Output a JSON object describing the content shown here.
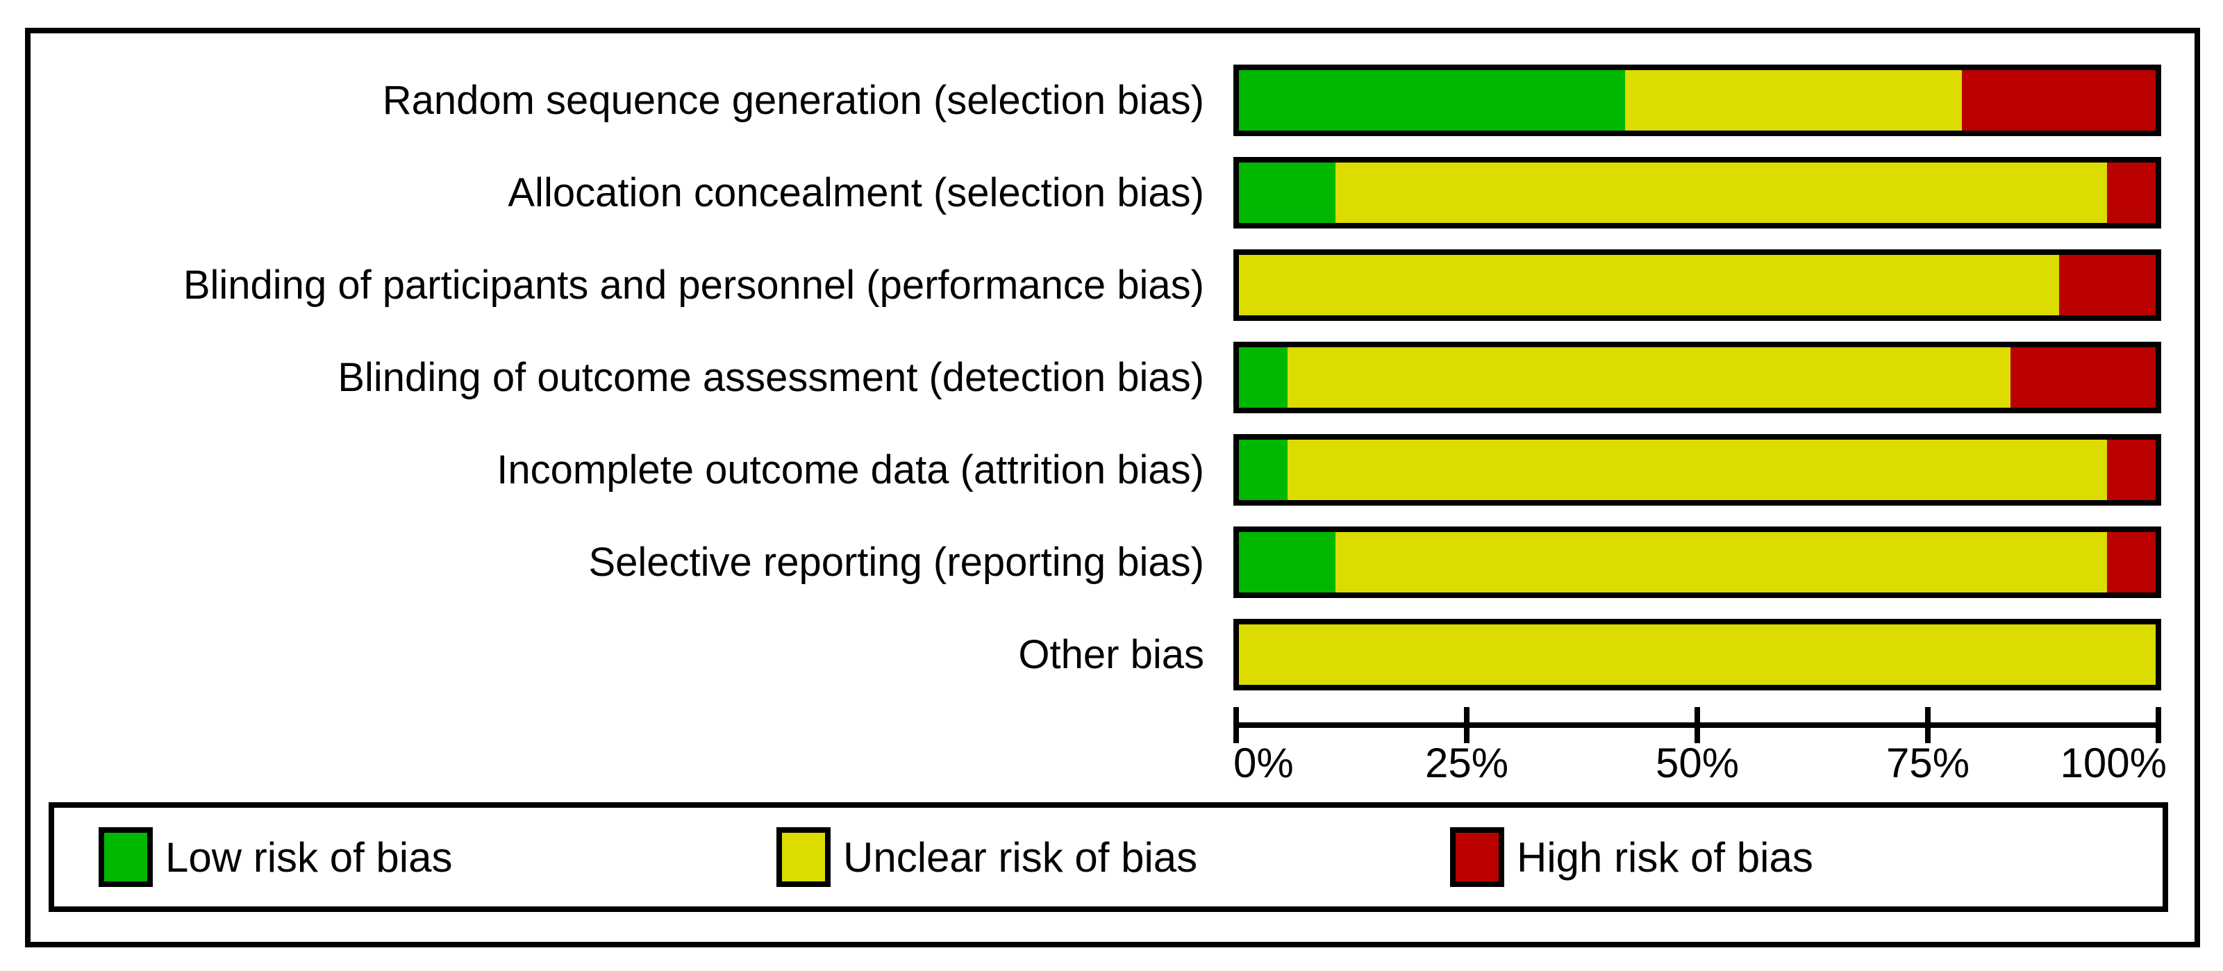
{
  "chart_data": {
    "type": "bar",
    "variant": "horizontal-stacked-percentage",
    "title": "",
    "xlabel": "",
    "ylabel": "",
    "grid": false,
    "categories": [
      "Random sequence generation (selection bias)",
      "Allocation concealment (selection bias)",
      "Blinding of participants and personnel (performance bias)",
      "Blinding of outcome assessment (detection bias)",
      "Incomplete outcome data (attrition bias)",
      "Selective reporting (reporting bias)",
      "Other bias"
    ],
    "series": [
      {
        "name": "Low risk of bias",
        "color": "#00b800",
        "values": [
          42.1,
          10.5,
          0,
          5.3,
          5.3,
          10.5,
          0
        ]
      },
      {
        "name": "Unclear risk of bias",
        "color": "#dcdc00",
        "values": [
          36.8,
          84.2,
          89.5,
          78.9,
          89.4,
          84.2,
          100
        ]
      },
      {
        "name": "High risk of bias",
        "color": "#bb0000",
        "values": [
          21.1,
          5.3,
          10.5,
          15.8,
          5.3,
          5.3,
          0
        ]
      }
    ],
    "x_axis": {
      "range": [
        0,
        100
      ],
      "tick_labels": [
        "0%",
        "25%",
        "50%",
        "75%",
        "100%"
      ]
    },
    "legend": {
      "position": "bottom",
      "items": [
        {
          "label": "Low risk of bias",
          "color": "#00b800"
        },
        {
          "label": "Unclear risk of bias",
          "color": "#dcdc00"
        },
        {
          "label": "High risk of bias",
          "color": "#bb0000"
        }
      ]
    }
  }
}
